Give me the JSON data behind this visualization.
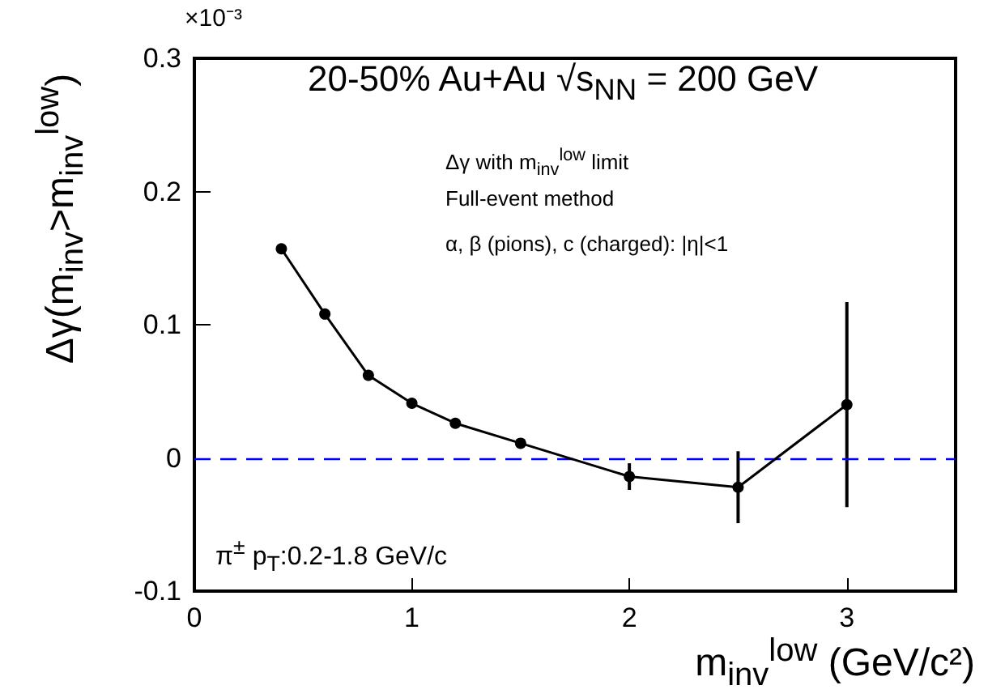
{
  "chart_data": {
    "type": "line",
    "title": "20-50% Au+Au √s$_{NN}$ = 200 GeV",
    "xlabel": "m$_{inv}$$^{low}$ (GeV/c²)",
    "ylabel": "Δγ(m$_{inv}$>m$_{inv}$$^{low}$)",
    "annotations": [
      "×10⁻³",
      "Δγ with m$_{inv}$$^{low}$ limit",
      "Full-event method",
      "α, β (pions), c (charged): |η|<1",
      "π$^{±}$ p$_{T}$:0.2-1.8 GeV/c"
    ],
    "x": [
      0.4,
      0.6,
      0.8,
      1.0,
      1.2,
      1.5,
      2.0,
      2.5,
      3.0
    ],
    "series": [
      {
        "color": "#000000",
        "values": [
          0.157,
          0.108,
          0.062,
          0.041,
          0.026,
          0.011,
          -0.014,
          -0.022,
          0.04
        ],
        "errors": [
          null,
          null,
          null,
          null,
          null,
          null,
          0.01,
          0.027,
          0.077
        ]
      }
    ],
    "xlim": [
      0,
      3.5
    ],
    "xticks": [
      0,
      1,
      2,
      3
    ],
    "ylim": [
      -0.1,
      0.3
    ],
    "yticks": [
      -0.1,
      0,
      0.1,
      0.2,
      0.3
    ],
    "ref_lines": [
      {
        "axis": "y",
        "value": 0,
        "color": "#0000ff",
        "line_style": "dashed"
      }
    ],
    "marker": "circle",
    "line_style": "solid",
    "grid": false
  }
}
